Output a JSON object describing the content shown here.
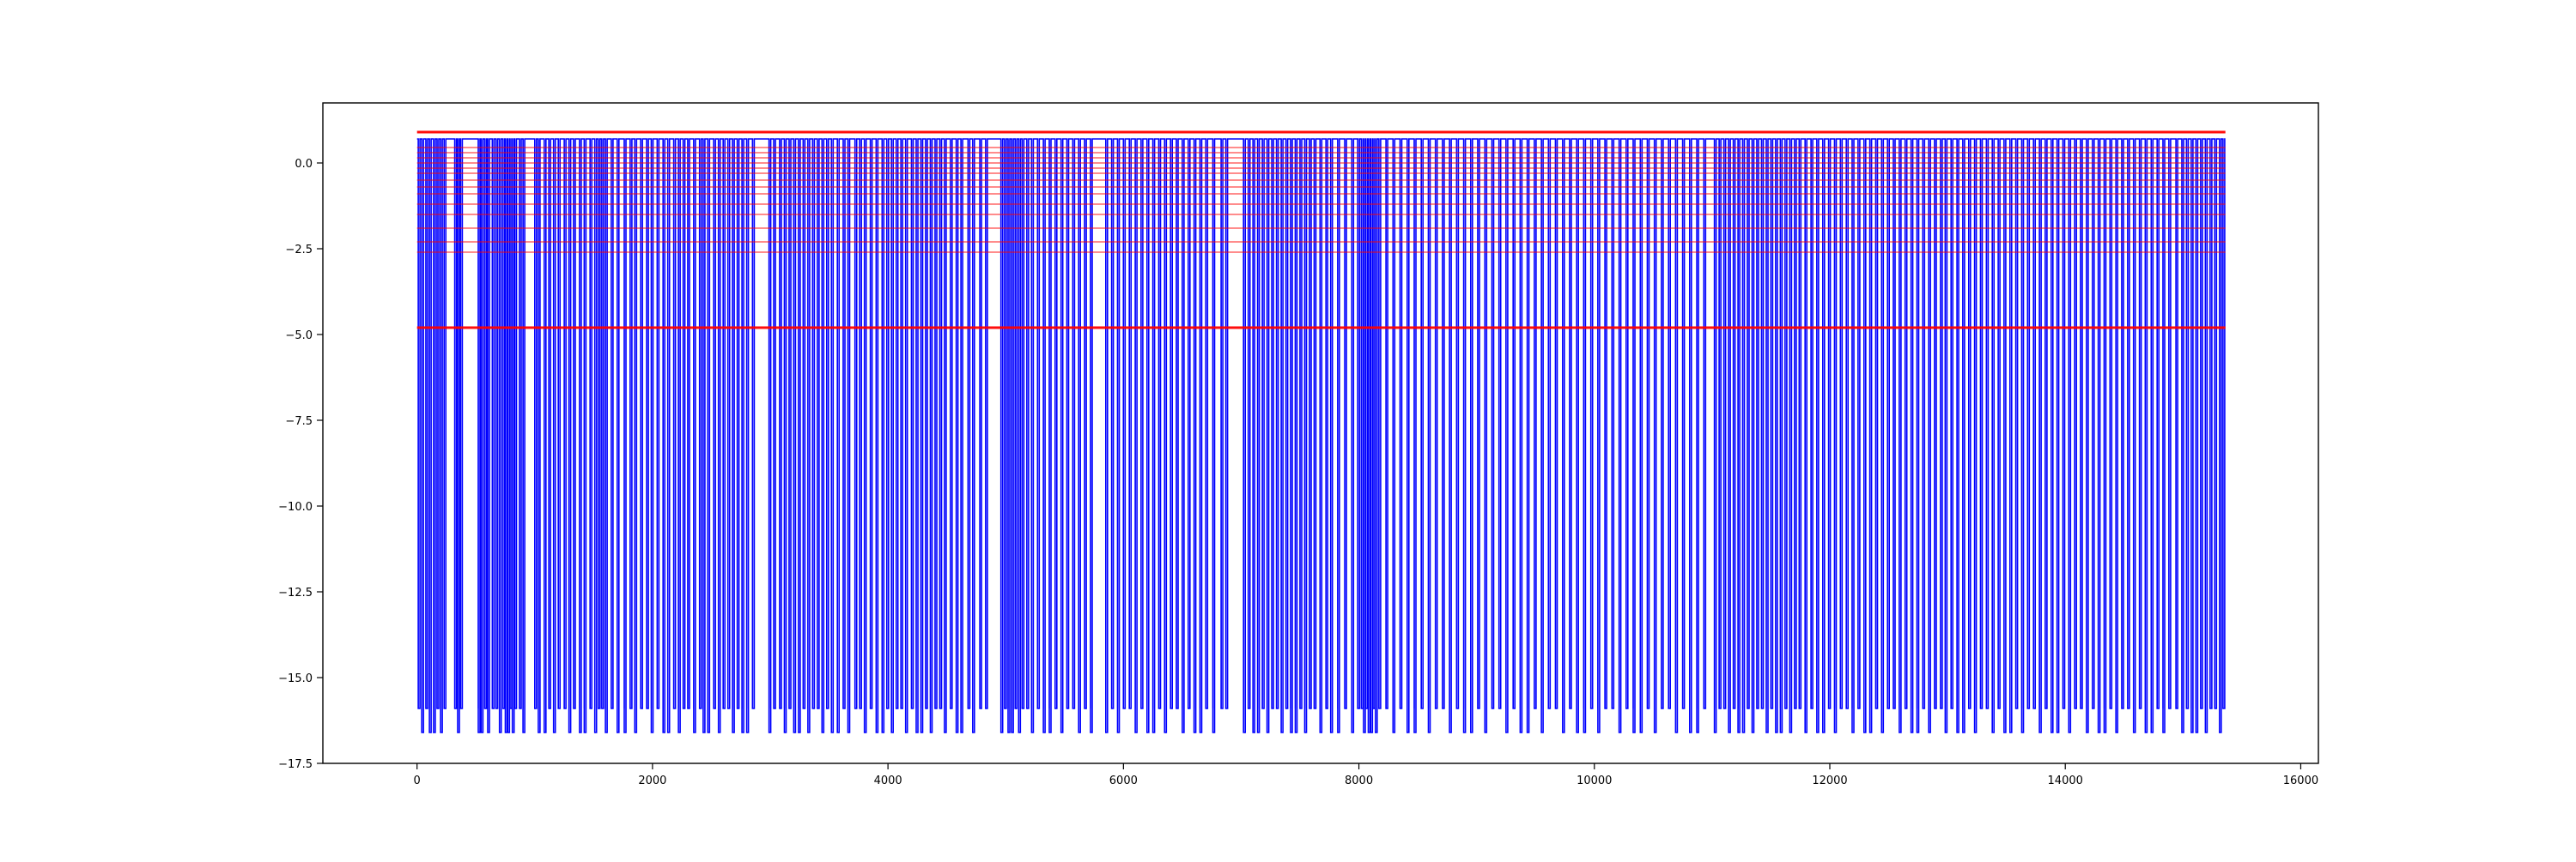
{
  "chart_data": {
    "type": "line",
    "title": "",
    "xlabel": "",
    "ylabel": "",
    "xlim": [
      -800,
      16150
    ],
    "ylim": [
      -17.5,
      1.75
    ],
    "grid": false,
    "legend": "none",
    "xticks": [
      0,
      2000,
      4000,
      6000,
      8000,
      10000,
      12000,
      14000,
      16000
    ],
    "xtick_labels": [
      "0",
      "2000",
      "4000",
      "6000",
      "8000",
      "10000",
      "12000",
      "14000",
      "16000"
    ],
    "yticks": [
      0.0,
      -2.5,
      -5.0,
      -7.5,
      -10.0,
      -12.5,
      -15.0,
      -17.5
    ],
    "ytick_labels": [
      "0.0",
      "−2.5",
      "−5.0",
      "−7.5",
      "−10.0",
      "−12.5",
      "−15.0",
      "−17.5"
    ],
    "signal": {
      "color": "#0000ff",
      "x_range": [
        0,
        15360
      ],
      "baseline": 0.7,
      "drop_levels": [
        -15.9,
        -16.6
      ],
      "drop_x": [
        10,
        40,
        75,
        105,
        140,
        170,
        200,
        230,
        320,
        345,
        370,
        520,
        545,
        575,
        600,
        640,
        670,
        700,
        730,
        750,
        770,
        790,
        810,
        830,
        870,
        900,
        1000,
        1030,
        1080,
        1120,
        1160,
        1200,
        1250,
        1290,
        1330,
        1380,
        1420,
        1470,
        1510,
        1540,
        1570,
        1600,
        1650,
        1700,
        1760,
        1810,
        1850,
        1900,
        1950,
        1990,
        2040,
        2090,
        2130,
        2180,
        2220,
        2260,
        2300,
        2350,
        2400,
        2430,
        2470,
        2520,
        2560,
        2600,
        2640,
        2680,
        2720,
        2760,
        2800,
        2850,
        2990,
        3030,
        3080,
        3120,
        3160,
        3200,
        3240,
        3280,
        3320,
        3360,
        3400,
        3440,
        3480,
        3520,
        3570,
        3620,
        3660,
        3720,
        3760,
        3800,
        3850,
        3900,
        3950,
        3990,
        4030,
        4070,
        4110,
        4150,
        4200,
        4240,
        4280,
        4320,
        4360,
        4400,
        4440,
        4480,
        4530,
        4580,
        4620,
        4680,
        4720,
        4780,
        4830,
        4960,
        4990,
        5020,
        5050,
        5080,
        5110,
        5140,
        5180,
        5220,
        5270,
        5320,
        5370,
        5420,
        5470,
        5520,
        5570,
        5620,
        5670,
        5720,
        5850,
        5900,
        5950,
        6000,
        6050,
        6100,
        6150,
        6200,
        6250,
        6300,
        6350,
        6400,
        6450,
        6500,
        6550,
        6600,
        6650,
        6700,
        6760,
        6830,
        6870,
        7020,
        7060,
        7100,
        7140,
        7180,
        7220,
        7260,
        7300,
        7340,
        7380,
        7420,
        7460,
        7500,
        7540,
        7580,
        7620,
        7670,
        7720,
        7760,
        7820,
        7880,
        7940,
        7990,
        8020,
        8040,
        8060,
        8080,
        8100,
        8120,
        8140,
        8170,
        8230,
        8290,
        8350,
        8410,
        8470,
        8530,
        8590,
        8650,
        8710,
        8770,
        8830,
        8890,
        8950,
        9010,
        9070,
        9130,
        9190,
        9250,
        9310,
        9370,
        9430,
        9490,
        9550,
        9610,
        9670,
        9730,
        9790,
        9850,
        9910,
        9970,
        10030,
        10090,
        10150,
        10210,
        10270,
        10330,
        10390,
        10450,
        10510,
        10570,
        10630,
        10690,
        10750,
        10810,
        10870,
        10930,
        11020,
        11060,
        11100,
        11140,
        11180,
        11220,
        11260,
        11300,
        11340,
        11380,
        11420,
        11460,
        11500,
        11540,
        11580,
        11620,
        11660,
        11700,
        11740,
        11790,
        11840,
        11890,
        11940,
        11990,
        12040,
        12090,
        12140,
        12190,
        12240,
        12290,
        12340,
        12390,
        12440,
        12490,
        12540,
        12590,
        12640,
        12690,
        12740,
        12790,
        12840,
        12890,
        12940,
        12980,
        13030,
        13080,
        13130,
        13180,
        13230,
        13280,
        13330,
        13380,
        13430,
        13480,
        13530,
        13580,
        13630,
        13680,
        13730,
        13780,
        13830,
        13880,
        13930,
        13980,
        14030,
        14080,
        14130,
        14180,
        14230,
        14280,
        14330,
        14380,
        14430,
        14480,
        14530,
        14580,
        14630,
        14680,
        14730,
        14780,
        14830,
        14880,
        14940,
        14990,
        15030,
        15070,
        15110,
        15150,
        15190,
        15230,
        15270,
        15310,
        15340
      ]
    },
    "thresholds": {
      "color": "#ff0000",
      "x_range": [
        0,
        15360
      ],
      "levels": [
        {
          "y": 0.9,
          "emphasis": "strong"
        },
        {
          "y": 0.45,
          "emphasis": "faint"
        },
        {
          "y": 0.3,
          "emphasis": "faint"
        },
        {
          "y": 0.15,
          "emphasis": "faint"
        },
        {
          "y": 0.0,
          "emphasis": "faint"
        },
        {
          "y": -0.15,
          "emphasis": "faint"
        },
        {
          "y": -0.3,
          "emphasis": "faint"
        },
        {
          "y": -0.5,
          "emphasis": "faint"
        },
        {
          "y": -0.7,
          "emphasis": "faint"
        },
        {
          "y": -0.9,
          "emphasis": "faint"
        },
        {
          "y": -1.2,
          "emphasis": "faint"
        },
        {
          "y": -1.5,
          "emphasis": "faint"
        },
        {
          "y": -1.9,
          "emphasis": "faint"
        },
        {
          "y": -2.3,
          "emphasis": "faint"
        },
        {
          "y": -2.6,
          "emphasis": "faint"
        },
        {
          "y": -4.8,
          "emphasis": "strong"
        }
      ]
    }
  }
}
